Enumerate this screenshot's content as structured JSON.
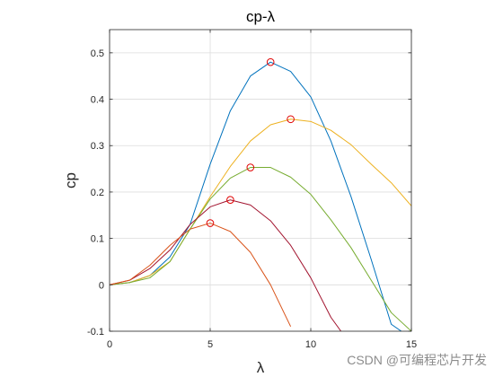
{
  "chart_data": {
    "type": "line",
    "title": "cp-λ",
    "xlabel": "λ",
    "ylabel": "cp",
    "xlim": [
      0,
      15
    ],
    "ylim": [
      -0.1,
      0.55
    ],
    "xticks": [
      0,
      5,
      10,
      15
    ],
    "xtick_labels": [
      "0",
      "5",
      "10",
      "15"
    ],
    "yticks": [
      -0.1,
      0,
      0.1,
      0.2,
      0.3,
      0.4,
      0.5
    ],
    "ytick_labels": [
      "-0.1",
      "0",
      "0.1",
      "0.2",
      "0.3",
      "0.4",
      "0.5"
    ],
    "grid": true,
    "box": true,
    "colors": {
      "blue": "#0072bd",
      "yellow": "#edb120",
      "green": "#77ac30",
      "purple": "#a2142f",
      "orange": "#d95319",
      "marker": "#e00000",
      "grid": "#dcdcdc",
      "axis": "#262626"
    },
    "series": [
      {
        "color_key": "blue",
        "x": [
          0,
          1,
          2,
          3,
          4,
          5,
          6,
          7,
          8,
          9,
          10,
          11,
          12,
          13,
          14,
          14.5
        ],
        "y": [
          0,
          0.005,
          0.02,
          0.06,
          0.13,
          0.26,
          0.375,
          0.45,
          0.48,
          0.46,
          0.405,
          0.31,
          0.19,
          0.055,
          -0.085,
          -0.1
        ]
      },
      {
        "color_key": "yellow",
        "x": [
          0,
          1,
          2,
          3,
          4,
          5,
          6,
          7,
          8,
          9,
          10,
          11,
          12,
          13,
          14,
          15
        ],
        "y": [
          0,
          0.005,
          0.02,
          0.05,
          0.12,
          0.19,
          0.255,
          0.31,
          0.345,
          0.357,
          0.352,
          0.333,
          0.302,
          0.26,
          0.22,
          0.17
        ]
      },
      {
        "color_key": "green",
        "x": [
          0,
          1,
          2,
          3,
          4,
          5,
          6,
          7,
          8,
          9,
          10,
          11,
          12,
          13,
          14,
          15
        ],
        "y": [
          0,
          0.005,
          0.015,
          0.05,
          0.12,
          0.185,
          0.23,
          0.253,
          0.253,
          0.232,
          0.195,
          0.14,
          0.08,
          0.01,
          -0.06,
          -0.1
        ]
      },
      {
        "color_key": "purple",
        "x": [
          0,
          1,
          2,
          3,
          4,
          5,
          6,
          7,
          8,
          9,
          10,
          11,
          11.5
        ],
        "y": [
          0,
          0.01,
          0.035,
          0.075,
          0.13,
          0.168,
          0.183,
          0.172,
          0.138,
          0.085,
          0.015,
          -0.07,
          -0.1
        ]
      },
      {
        "color_key": "orange",
        "x": [
          0,
          1,
          2,
          3,
          4,
          5,
          6,
          7,
          8,
          9
        ],
        "y": [
          0,
          0.01,
          0.042,
          0.085,
          0.12,
          0.133,
          0.115,
          0.07,
          0.0,
          -0.09
        ]
      }
    ],
    "markers": [
      {
        "x": 8,
        "y": 0.48
      },
      {
        "x": 9,
        "y": 0.357
      },
      {
        "x": 7,
        "y": 0.253
      },
      {
        "x": 6,
        "y": 0.183
      },
      {
        "x": 5,
        "y": 0.133
      }
    ]
  },
  "watermark": "CSDN @可编程芯片开发"
}
